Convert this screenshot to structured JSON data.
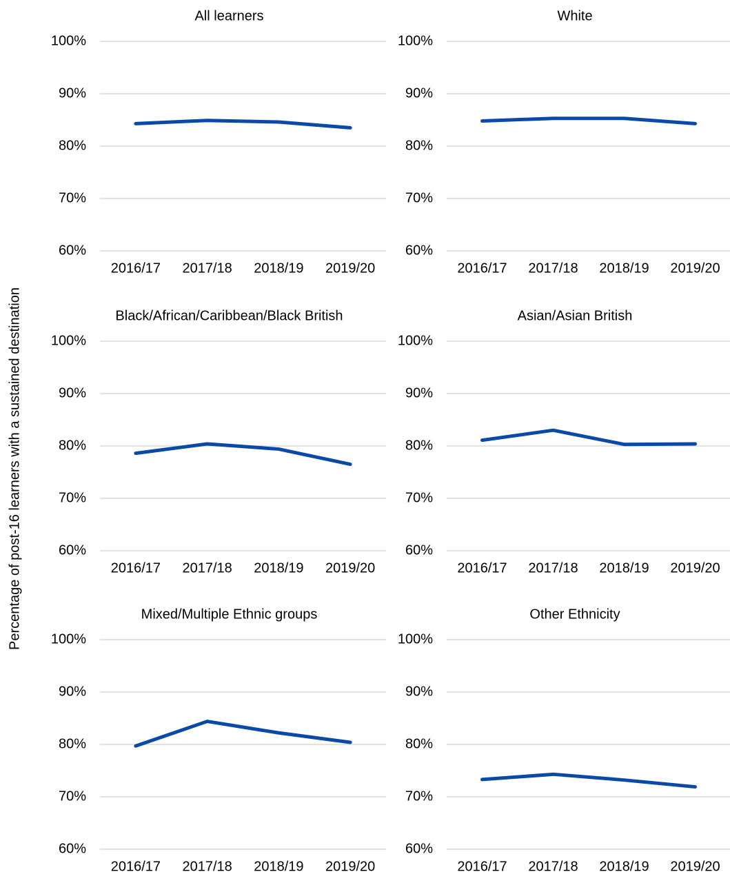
{
  "ylabel": "Percentage of post-16 learners with a sustained destination",
  "chart_data": [
    {
      "type": "line",
      "title": "All learners",
      "categories": [
        "2016/17",
        "2017/18",
        "2018/19",
        "2019/20"
      ],
      "values": [
        84.3,
        84.9,
        84.6,
        83.5
      ],
      "color": "#0a4aa6",
      "ylim": [
        60,
        100
      ],
      "yticks": [
        {
          "value": 60,
          "label": "60%"
        },
        {
          "value": 70,
          "label": "70%"
        },
        {
          "value": 80,
          "label": "80%"
        },
        {
          "value": 90,
          "label": "90%"
        },
        {
          "value": 100,
          "label": "100%"
        }
      ],
      "grid": true
    },
    {
      "type": "line",
      "title": "White",
      "categories": [
        "2016/17",
        "2017/18",
        "2018/19",
        "2019/20"
      ],
      "values": [
        84.8,
        85.3,
        85.3,
        84.3
      ],
      "color": "#0a4aa6",
      "ylim": [
        60,
        100
      ],
      "yticks": [
        {
          "value": 60,
          "label": "60%"
        },
        {
          "value": 70,
          "label": "70%"
        },
        {
          "value": 80,
          "label": "80%"
        },
        {
          "value": 90,
          "label": "90%"
        },
        {
          "value": 100,
          "label": "100%"
        }
      ],
      "grid": true
    },
    {
      "type": "line",
      "title": "Black/African/Caribbean/Black British",
      "categories": [
        "2016/17",
        "2017/18",
        "2018/19",
        "2019/20"
      ],
      "values": [
        78.6,
        80.4,
        79.4,
        76.5
      ],
      "color": "#0a4aa6",
      "ylim": [
        60,
        100
      ],
      "yticks": [
        {
          "value": 60,
          "label": "60%"
        },
        {
          "value": 70,
          "label": "70%"
        },
        {
          "value": 80,
          "label": "80%"
        },
        {
          "value": 90,
          "label": "90%"
        },
        {
          "value": 100,
          "label": "100%"
        }
      ],
      "grid": true
    },
    {
      "type": "line",
      "title": "Asian/Asian British",
      "categories": [
        "2016/17",
        "2017/18",
        "2018/19",
        "2019/20"
      ],
      "values": [
        81.1,
        83.0,
        80.3,
        80.4
      ],
      "color": "#0a4aa6",
      "ylim": [
        60,
        100
      ],
      "yticks": [
        {
          "value": 60,
          "label": "60%"
        },
        {
          "value": 70,
          "label": "70%"
        },
        {
          "value": 80,
          "label": "80%"
        },
        {
          "value": 90,
          "label": "90%"
        },
        {
          "value": 100,
          "label": "100%"
        }
      ],
      "grid": true
    },
    {
      "type": "line",
      "title": "Mixed/Multiple Ethnic groups",
      "categories": [
        "2016/17",
        "2017/18",
        "2018/19",
        "2019/20"
      ],
      "values": [
        79.7,
        84.4,
        82.2,
        80.4
      ],
      "color": "#0a4aa6",
      "ylim": [
        60,
        100
      ],
      "yticks": [
        {
          "value": 60,
          "label": "60%"
        },
        {
          "value": 70,
          "label": "70%"
        },
        {
          "value": 80,
          "label": "80%"
        },
        {
          "value": 90,
          "label": "90%"
        },
        {
          "value": 100,
          "label": "100%"
        }
      ],
      "grid": true
    },
    {
      "type": "line",
      "title": "Other Ethnicity",
      "categories": [
        "2016/17",
        "2017/18",
        "2018/19",
        "2019/20"
      ],
      "values": [
        73.3,
        74.3,
        73.2,
        71.9
      ],
      "color": "#0a4aa6",
      "ylim": [
        60,
        100
      ],
      "yticks": [
        {
          "value": 60,
          "label": "60%"
        },
        {
          "value": 70,
          "label": "70%"
        },
        {
          "value": 80,
          "label": "80%"
        },
        {
          "value": 90,
          "label": "90%"
        },
        {
          "value": 100,
          "label": "100%"
        }
      ],
      "grid": true
    }
  ]
}
